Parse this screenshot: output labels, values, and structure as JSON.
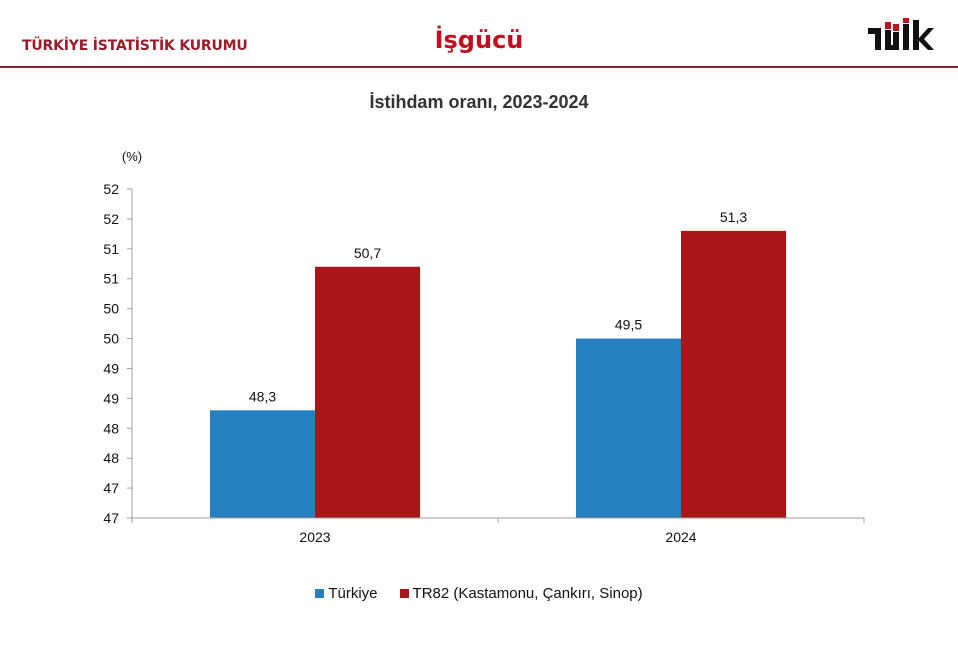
{
  "header": {
    "organization": "TÜRKİYE İSTATİSTİK KURUMU",
    "section": "İşgücü",
    "logo": "tuik-logo"
  },
  "chart_data": {
    "type": "bar",
    "title": "İstihdam oranı, 2023-2024",
    "ylabel": "(%)",
    "xlabel": "",
    "categories": [
      "2023",
      "2024"
    ],
    "series": [
      {
        "name": "Türkiye",
        "color": "#2580bf",
        "values": [
          48.3,
          49.5
        ],
        "labels": [
          "48,3",
          "49,5"
        ]
      },
      {
        "name": "TR82 (Kastamonu, Çankırı, Sinop)",
        "color": "#ab1518",
        "values": [
          50.7,
          51.3
        ],
        "labels": [
          "50,7",
          "51,3"
        ]
      }
    ],
    "ylim": [
      46.5,
      52.0
    ],
    "yticks": [
      46.5,
      47.0,
      47.5,
      48.0,
      48.5,
      49.0,
      49.5,
      50.0,
      50.5,
      51.0,
      51.5,
      52.0
    ],
    "ytick_labels": [
      "47",
      "47",
      "48",
      "48",
      "49",
      "49",
      "50",
      "50",
      "51",
      "51",
      "52",
      "52"
    ],
    "grid": false,
    "legend_position": "bottom"
  }
}
